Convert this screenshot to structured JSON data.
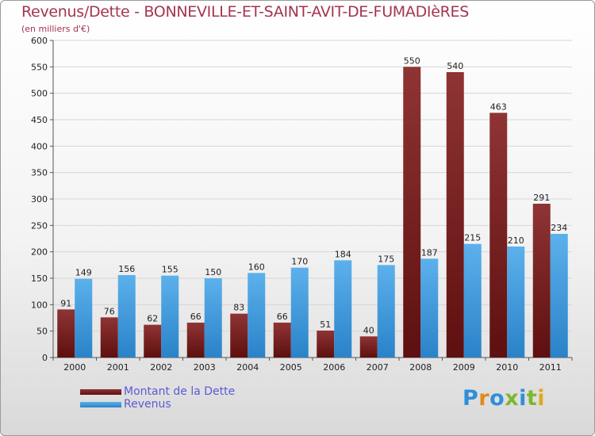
{
  "header": {
    "title": "Revenus/Dette - BONNEVILLE-ET-SAINT-AVIT-DE-FUMADIèRES",
    "subtitle": "(en milliers d'€)"
  },
  "legend": {
    "items": [
      {
        "label": "Montant de la Dette",
        "color": "#7a2020"
      },
      {
        "label": "Revenus",
        "color": "#3a96dc"
      }
    ]
  },
  "logo": {
    "text": "Proxiti"
  },
  "colors": {
    "title": "#a33550",
    "legend_text": "#5a5ad6",
    "dette_top": "#8f3434",
    "dette_bottom": "#5e0f0f",
    "revenus_top": "#5cb1ec",
    "revenus_bottom": "#2a82c8",
    "grid": "#d6d6d6"
  },
  "chart_data": {
    "type": "bar",
    "title": "Revenus/Dette - BONNEVILLE-ET-SAINT-AVIT-DE-FUMADIèRES",
    "ylabel": "(en milliers d'€)",
    "xlabel": "",
    "categories": [
      "2000",
      "2001",
      "2002",
      "2003",
      "2004",
      "2005",
      "2006",
      "2007",
      "2008",
      "2009",
      "2010",
      "2011"
    ],
    "series": [
      {
        "name": "Montant de la Dette",
        "values": [
          91,
          76,
          62,
          66,
          83,
          66,
          51,
          40,
          550,
          540,
          463,
          291
        ]
      },
      {
        "name": "Revenus",
        "values": [
          149,
          156,
          155,
          150,
          160,
          170,
          184,
          175,
          187,
          215,
          210,
          234
        ]
      }
    ],
    "ylim": [
      0,
      600
    ],
    "yticks": [
      0,
      50,
      100,
      150,
      200,
      250,
      300,
      350,
      400,
      450,
      500,
      550,
      600
    ],
    "grid": true,
    "legend_position": "bottom-left"
  }
}
